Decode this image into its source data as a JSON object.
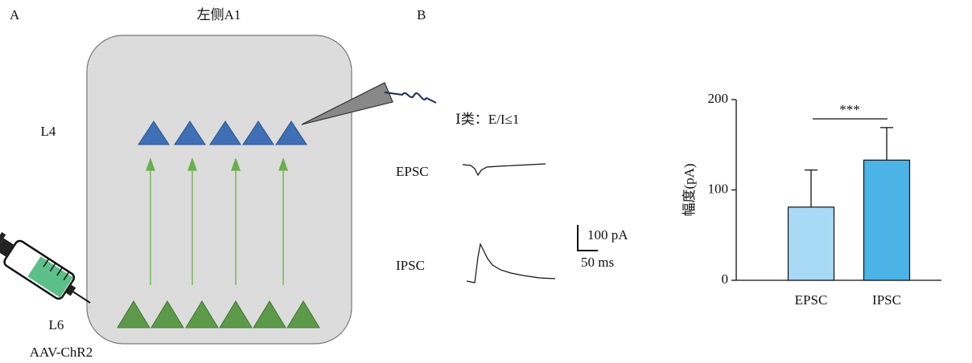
{
  "panel_a": {
    "label": "A",
    "title": "左侧A1",
    "layer_top": "L4",
    "layer_bottom": "L6",
    "virus": "AAV-ChR2"
  },
  "panel_b": {
    "label": "B",
    "class_label": "Ⅰ类：E/I≤1",
    "trace_1": "EPSC",
    "trace_2": "IPSC",
    "scale_y": "100 pA",
    "scale_x": "50 ms"
  },
  "chart_data": {
    "type": "bar",
    "ylabel": "幅度(pA)",
    "categories": [
      "EPSC",
      "IPSC"
    ],
    "values": [
      81,
      133
    ],
    "errors": [
      41,
      36
    ],
    "colors": [
      "#a8daf5",
      "#4bb3e6"
    ],
    "ylim": [
      0,
      200
    ],
    "yticks": [
      0,
      100,
      200
    ],
    "annotation": "***"
  }
}
